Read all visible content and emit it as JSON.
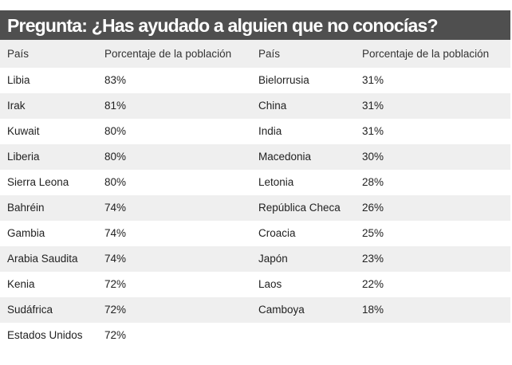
{
  "title": "Pregunta: ¿Has ayudado a alguien que no conocías?",
  "headers": [
    "País",
    "Porcentaje de la población",
    "País",
    "Porcentaje de la población"
  ],
  "rows": [
    [
      "Libia",
      "83%",
      "Bielorrusia",
      "31%"
    ],
    [
      "Irak",
      "81%",
      "China",
      "31%"
    ],
    [
      "Kuwait",
      "80%",
      "India",
      "31%"
    ],
    [
      "Liberia",
      "80%",
      "Macedonia",
      "30%"
    ],
    [
      "Sierra Leona",
      "80%",
      "Letonia",
      "28%"
    ],
    [
      "Bahréin",
      "74%",
      "República Checa",
      "26%"
    ],
    [
      "Gambia",
      "74%",
      "Croacia",
      "25%"
    ],
    [
      "Arabia Saudita",
      "74%",
      "Japón",
      "23%"
    ],
    [
      "Kenia",
      "72%",
      "Laos",
      "22%"
    ],
    [
      "Sudáfrica",
      "72%",
      "Camboya",
      "18%"
    ],
    [
      "Estados Unidos",
      "72%",
      "",
      ""
    ]
  ]
}
